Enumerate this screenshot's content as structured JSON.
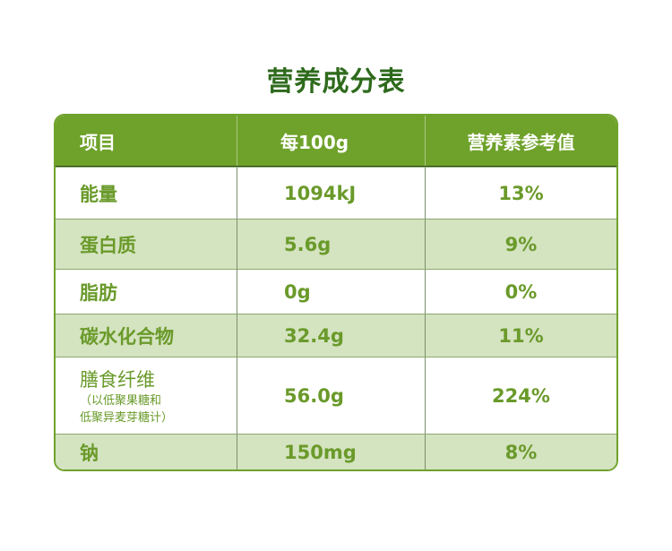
{
  "title": "营养成分表",
  "header": {
    "item": "项目",
    "per100g": "每100g",
    "nrv": "营养素参考值"
  },
  "rows": [
    {
      "item": "能量",
      "per100g": "1094kJ",
      "nrv": "13%"
    },
    {
      "item": "蛋白质",
      "per100g": "5.6g",
      "nrv": "9%"
    },
    {
      "item": "脂肪",
      "per100g": "0g",
      "nrv": "0%"
    },
    {
      "item": "碳水化合物",
      "per100g": "32.4g",
      "nrv": "11%"
    },
    {
      "item": "膳食纤维",
      "note1": "（以低聚果糖和",
      "note2": "低聚异麦芽糖计）",
      "per100g": "56.0g",
      "nrv": "224%"
    },
    {
      "item": "钠",
      "per100g": "150mg",
      "nrv": "8%"
    }
  ],
  "colors": {
    "header": "#6fa22b",
    "alt_row": "#d4e3c0",
    "text": "#6a9a2a",
    "title": "#2e6a1c"
  }
}
